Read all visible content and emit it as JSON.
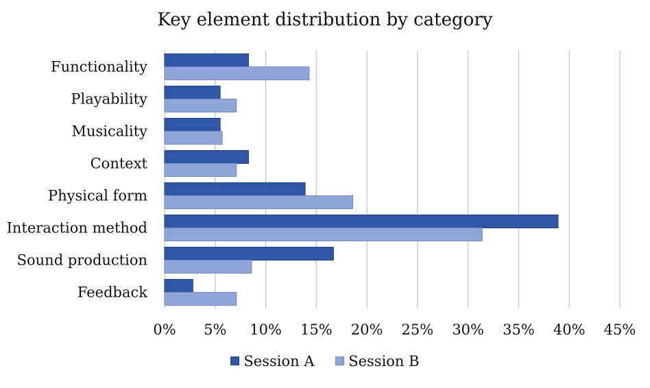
{
  "chart_data": {
    "type": "bar",
    "orientation": "horizontal",
    "title": "Key element distribution by category",
    "xlabel": "",
    "ylabel": "",
    "categories": [
      "Functionality",
      "Playability",
      "Musicality",
      "Context",
      "Physical form",
      "Interaction method",
      "Sound production",
      "Feedback"
    ],
    "series": [
      {
        "name": "Session A",
        "color": "#2e57a8",
        "values": [
          8.3,
          5.5,
          5.5,
          8.3,
          13.9,
          38.9,
          16.7,
          2.8
        ]
      },
      {
        "name": "Session B",
        "color": "#8fa5d9",
        "values": [
          14.3,
          7.1,
          5.7,
          7.1,
          18.6,
          31.4,
          8.6,
          7.1
        ]
      }
    ],
    "xlim": [
      0,
      45
    ],
    "x_ticks": [
      0,
      5,
      10,
      15,
      20,
      25,
      30,
      35,
      40,
      45
    ],
    "x_tick_labels": [
      "0%",
      "5%",
      "10%",
      "15%",
      "20%",
      "25%",
      "30%",
      "35%",
      "40%",
      "45%"
    ],
    "grid": "vertical",
    "legend_position": "bottom"
  }
}
